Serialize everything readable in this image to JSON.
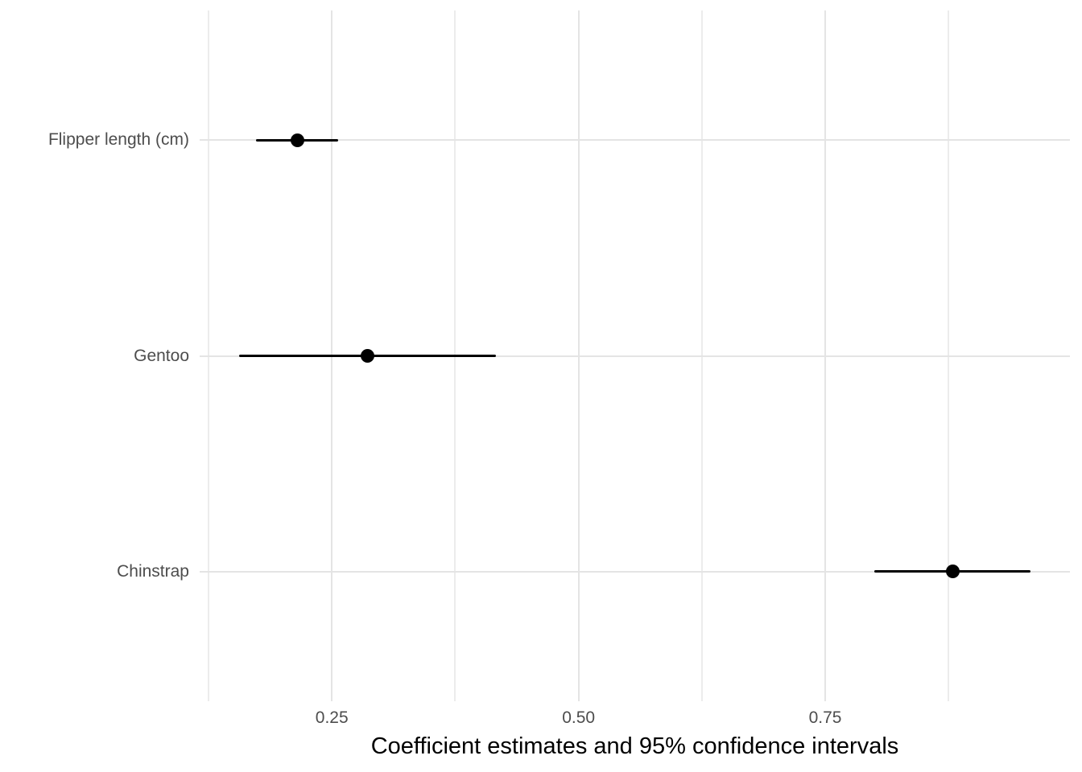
{
  "chart_data": {
    "type": "scatter",
    "subtype": "dot-whisker-coefficient-plot",
    "title": "",
    "xlabel": "Coefficient estimates and 95% confidence intervals",
    "ylabel": "",
    "categories": [
      "Flipper length (cm)",
      "Gentoo",
      "Chinstrap"
    ],
    "series": [
      {
        "name": "coefficient estimates with 95% CI",
        "points": [
          {
            "term": "Flipper length (cm)",
            "estimate": 0.215,
            "ci_low": 0.173,
            "ci_high": 0.256
          },
          {
            "term": "Gentoo",
            "estimate": 0.286,
            "ci_low": 0.156,
            "ci_high": 0.416
          },
          {
            "term": "Chinstrap",
            "estimate": 0.879,
            "ci_low": 0.8,
            "ci_high": 0.958
          }
        ]
      }
    ],
    "x_axis": {
      "ticks": [
        0.25,
        0.5,
        0.75
      ],
      "tick_labels": [
        "0.25",
        "0.50",
        "0.75"
      ],
      "minor_ticks": [
        0.125,
        0.375,
        0.625,
        0.875
      ],
      "range": [
        0.116,
        0.998
      ],
      "grid": true
    },
    "y_axis": {
      "type": "categorical",
      "labels_top_to_bottom": [
        "Flipper length (cm)",
        "Gentoo",
        "Chinstrap"
      ],
      "grid": true
    },
    "legend": "none",
    "colors": {
      "point": "#000000",
      "ci_line": "#000000",
      "grid_major": "#E4E4E4",
      "grid_minor": "#ECECEC",
      "axis_text": "#4D4D4D",
      "axis_title": "#000000",
      "background": "#FFFFFF"
    }
  }
}
